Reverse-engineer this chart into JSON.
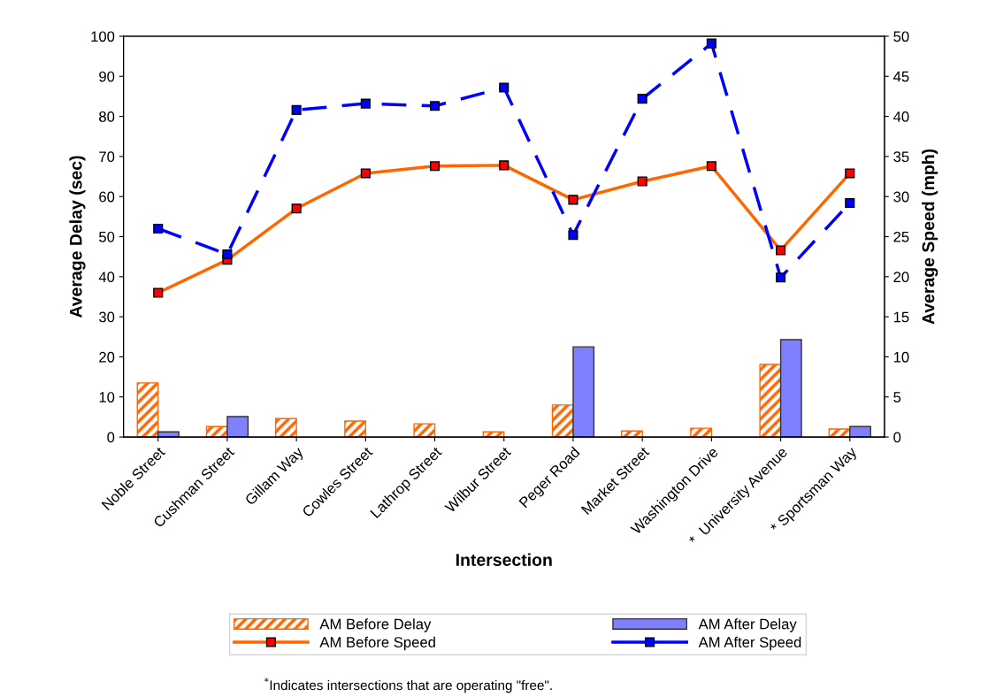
{
  "chart_data": {
    "type": "bar",
    "xlabel": "Intersection",
    "ylabel": "Average Delay (sec)",
    "y2label": "Average Speed (mph)",
    "categories": [
      "Noble Street",
      "Cushman Street",
      "Gillam Way",
      "Cowles Street",
      "Lathrop Street",
      "Wilbur Street",
      "Peger Road",
      "Market Street",
      "Washington Drive",
      "*  University Avenue",
      "* Sportsman Way"
    ],
    "series": [
      {
        "name": "AM Before Delay",
        "type": "bar",
        "color": "#ff6600",
        "values": [
          13.5,
          2.6,
          4.6,
          4.0,
          3.3,
          1.3,
          8.0,
          1.5,
          2.2,
          18.1,
          2.0
        ]
      },
      {
        "name": "AM After Delay",
        "type": "bar",
        "color": "#8080ff",
        "values": [
          1.3,
          5.1,
          null,
          null,
          null,
          null,
          22.5,
          null,
          null,
          24.3,
          2.6
        ]
      },
      {
        "name": "AM Before Speed",
        "type": "line",
        "axis": "y2",
        "color": "#ff6600",
        "line_style": "solid",
        "values": [
          18.0,
          22.1,
          28.5,
          32.9,
          33.8,
          33.9,
          29.6,
          31.9,
          33.8,
          23.3,
          32.9
        ]
      },
      {
        "name": "AM After Speed",
        "type": "line",
        "axis": "y2",
        "color": "#0000ff",
        "line_style": "dashed",
        "values": [
          26.0,
          22.8,
          40.8,
          41.6,
          41.3,
          43.6,
          25.2,
          42.2,
          49.1,
          19.9,
          29.2
        ]
      }
    ],
    "ylim": [
      0,
      100
    ],
    "yticks": [
      0,
      10,
      20,
      30,
      40,
      50,
      60,
      70,
      80,
      90,
      100
    ],
    "y2lim": [
      0,
      50
    ],
    "y2ticks": [
      0,
      5,
      10,
      15,
      20,
      25,
      30,
      35,
      40,
      45,
      50
    ],
    "marker": "square",
    "grid": false,
    "legend": "bottom",
    "annotations": [
      "$^{*}$Indicates intersections that are operating \"free\"."
    ]
  }
}
